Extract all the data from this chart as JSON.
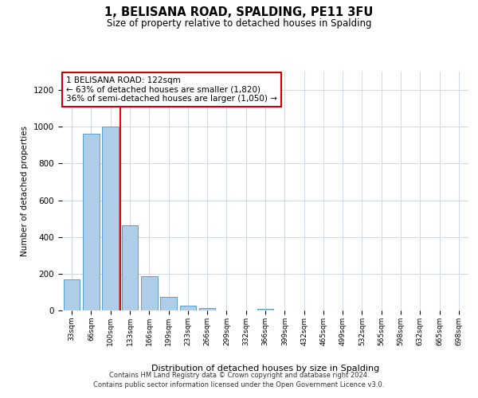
{
  "title": "1, BELISANA ROAD, SPALDING, PE11 3FU",
  "subtitle": "Size of property relative to detached houses in Spalding",
  "xlabel": "Distribution of detached houses by size in Spalding",
  "ylabel": "Number of detached properties",
  "bins": [
    "33sqm",
    "66sqm",
    "100sqm",
    "133sqm",
    "166sqm",
    "199sqm",
    "233sqm",
    "266sqm",
    "299sqm",
    "332sqm",
    "366sqm",
    "399sqm",
    "432sqm",
    "465sqm",
    "499sqm",
    "532sqm",
    "565sqm",
    "598sqm",
    "632sqm",
    "665sqm",
    "698sqm"
  ],
  "values": [
    170,
    960,
    1000,
    465,
    185,
    75,
    25,
    15,
    0,
    0,
    10,
    0,
    0,
    0,
    0,
    0,
    0,
    0,
    0,
    0,
    0
  ],
  "bar_color": "#aecde8",
  "bar_edge_color": "#5a9ec9",
  "red_line_x": 2.5,
  "annotation_title": "1 BELISANA ROAD: 122sqm",
  "annotation_line1": "← 63% of detached houses are smaller (1,820)",
  "annotation_line2": "36% of semi-detached houses are larger (1,050) →",
  "annotation_box_edge_color": "#cc0000",
  "yticks": [
    0,
    200,
    400,
    600,
    800,
    1000,
    1200
  ],
  "ylim": [
    0,
    1300
  ],
  "footer_line1": "Contains HM Land Registry data © Crown copyright and database right 2024.",
  "footer_line2": "Contains public sector information licensed under the Open Government Licence v3.0."
}
